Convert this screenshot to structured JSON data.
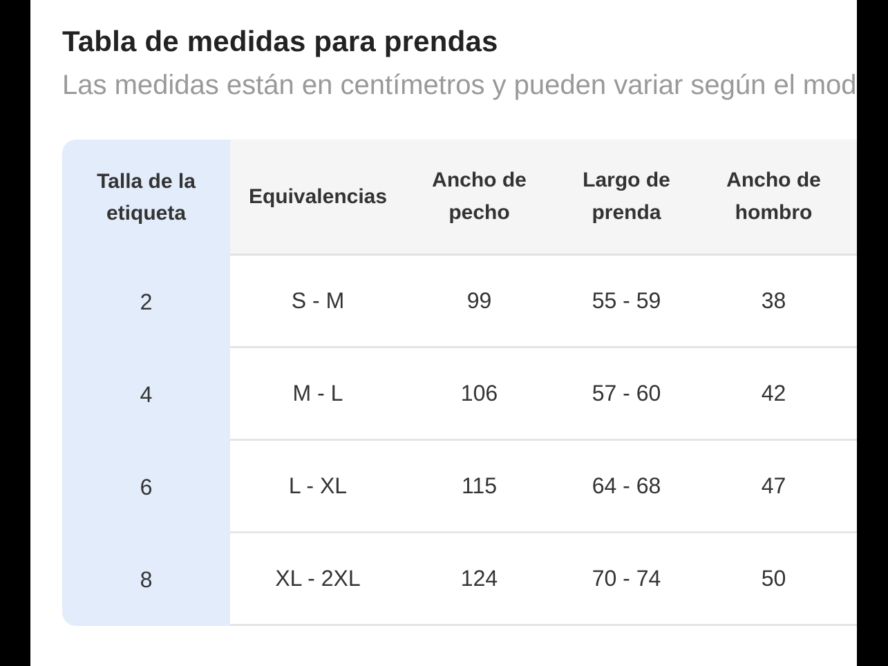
{
  "modal": {
    "title": "Tabla de medidas para prendas",
    "subtitle": "Las medidas están en centímetros y pueden variar según el modelo"
  },
  "table": {
    "columns": [
      "Talla de la etiqueta",
      "Equivalencias",
      "Ancho de pecho",
      "Largo de prenda",
      "Ancho de hombro"
    ],
    "rows": [
      [
        "2",
        "S - M",
        "99",
        "55 - 59",
        "38"
      ],
      [
        "4",
        "M - L",
        "106",
        "57 - 60",
        "42"
      ],
      [
        "6",
        "L - XL",
        "115",
        "64 - 68",
        "47"
      ],
      [
        "8",
        "XL - 2XL",
        "124",
        "70 - 74",
        "50"
      ]
    ]
  },
  "colors": {
    "highlight_column_bg": "#e3ecfa",
    "header_bg": "#f5f5f5",
    "row_divider": "#e5e5e5",
    "title_text": "#222222",
    "subtitle_text": "#999999",
    "body_text": "#333333",
    "letterbox": "#000000",
    "panel_bg": "#ffffff"
  }
}
